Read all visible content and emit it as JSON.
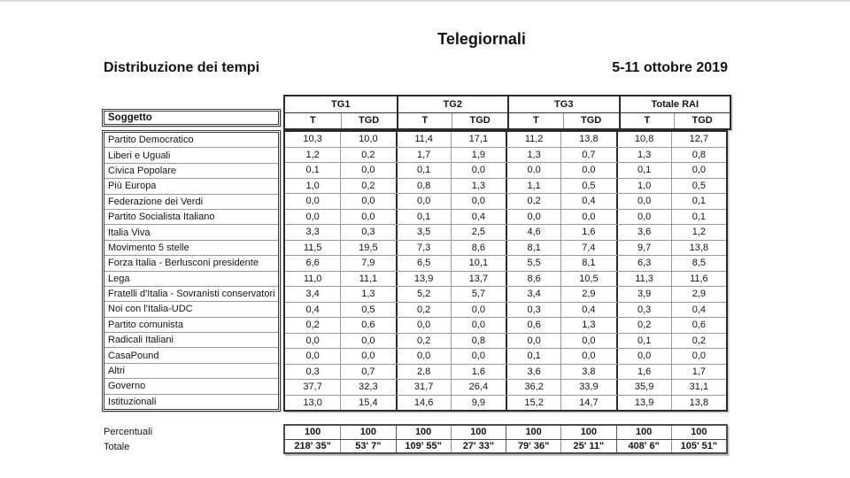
{
  "page": {
    "title": "Telegiornali",
    "subtitle_left": "Distribuzione dei tempi",
    "subtitle_right": "5-11 ottobre 2019"
  },
  "table": {
    "corner_label": "Soggetto",
    "groups": [
      {
        "label": "TG1"
      },
      {
        "label": "TG2"
      },
      {
        "label": "TG3"
      },
      {
        "label": "Totale RAI"
      }
    ],
    "subheaders": [
      "T",
      "TGD",
      "T",
      "TGD",
      "T",
      "TGD",
      "T",
      "TGD"
    ],
    "rows": [
      {
        "label": "Partito Democratico",
        "values": [
          "10,3",
          "10,0",
          "11,4",
          "17,1",
          "11,2",
          "13,8",
          "10,8",
          "12,7"
        ]
      },
      {
        "label": "Liberi e Uguali",
        "values": [
          "1,2",
          "0,2",
          "1,7",
          "1,9",
          "1,3",
          "0,7",
          "1,3",
          "0,8"
        ]
      },
      {
        "label": "Civica Popolare",
        "values": [
          "0,1",
          "0,0",
          "0,1",
          "0,0",
          "0,0",
          "0,0",
          "0,1",
          "0,0"
        ]
      },
      {
        "label": "Più Europa",
        "values": [
          "1,0",
          "0,2",
          "0,8",
          "1,3",
          "1,1",
          "0,5",
          "1,0",
          "0,5"
        ]
      },
      {
        "label": "Federazione dei Verdi",
        "values": [
          "0,0",
          "0,0",
          "0,0",
          "0,0",
          "0,2",
          "0,4",
          "0,0",
          "0,1"
        ]
      },
      {
        "label": "Partito Socialista Italiano",
        "values": [
          "0,0",
          "0,0",
          "0,1",
          "0,4",
          "0,0",
          "0,0",
          "0,0",
          "0,1"
        ]
      },
      {
        "label": "Italia Viva",
        "values": [
          "3,3",
          "0,3",
          "3,5",
          "2,5",
          "4,6",
          "1,6",
          "3,6",
          "1,2"
        ]
      },
      {
        "label": "Movimento 5 stelle",
        "values": [
          "11,5",
          "19,5",
          "7,3",
          "8,6",
          "8,1",
          "7,4",
          "9,7",
          "13,8"
        ]
      },
      {
        "label": "Forza Italia - Berlusconi presidente",
        "values": [
          "6,6",
          "7,9",
          "6,5",
          "10,1",
          "5,5",
          "8,1",
          "6,3",
          "8,5"
        ]
      },
      {
        "label": "Lega",
        "values": [
          "11,0",
          "11,1",
          "13,9",
          "13,7",
          "8,6",
          "10,5",
          "11,3",
          "11,6"
        ]
      },
      {
        "label": "Fratelli d'Italia -  Sovranisti conservatori",
        "values": [
          "3,4",
          "1,3",
          "5,2",
          "5,7",
          "3,4",
          "2,9",
          "3,9",
          "2,9"
        ]
      },
      {
        "label": "Noi con l'Italia-UDC",
        "values": [
          "0,4",
          "0,5",
          "0,2",
          "0,0",
          "0,3",
          "0,4",
          "0,3",
          "0,4"
        ]
      },
      {
        "label": "Partito comunista",
        "values": [
          "0,2",
          "0,6",
          "0,0",
          "0,0",
          "0,6",
          "1,3",
          "0,2",
          "0,6"
        ]
      },
      {
        "label": "Radicali Italiani",
        "values": [
          "0,0",
          "0,0",
          "0,2",
          "0,8",
          "0,0",
          "0,0",
          "0,1",
          "0,2"
        ]
      },
      {
        "label": "CasaPound",
        "values": [
          "0,0",
          "0,0",
          "0,0",
          "0,0",
          "0,1",
          "0,0",
          "0,0",
          "0,0"
        ]
      },
      {
        "label": "Altri",
        "values": [
          "0,3",
          "0,7",
          "2,8",
          "1,6",
          "3,6",
          "3,8",
          "1,6",
          "1,7"
        ]
      },
      {
        "label": "Governo",
        "values": [
          "37,7",
          "32,3",
          "31,7",
          "26,4",
          "36,2",
          "33,9",
          "35,9",
          "31,1"
        ]
      },
      {
        "label": "Istituzionali",
        "values": [
          "13,0",
          "15,4",
          "14,6",
          "9,9",
          "15,2",
          "14,7",
          "13,9",
          "13,8"
        ]
      }
    ],
    "footer": {
      "percent_label": "Percentuali",
      "percent_values": [
        "100",
        "100",
        "100",
        "100",
        "100",
        "100",
        "100",
        "100"
      ],
      "total_label": "Totale",
      "total_values": [
        "218' 35\"",
        "53' 7\"",
        "109' 55\"",
        "27' 33\"",
        "79' 36\"",
        "25' 11\"",
        "408' 6\"",
        "105' 51\""
      ]
    }
  }
}
